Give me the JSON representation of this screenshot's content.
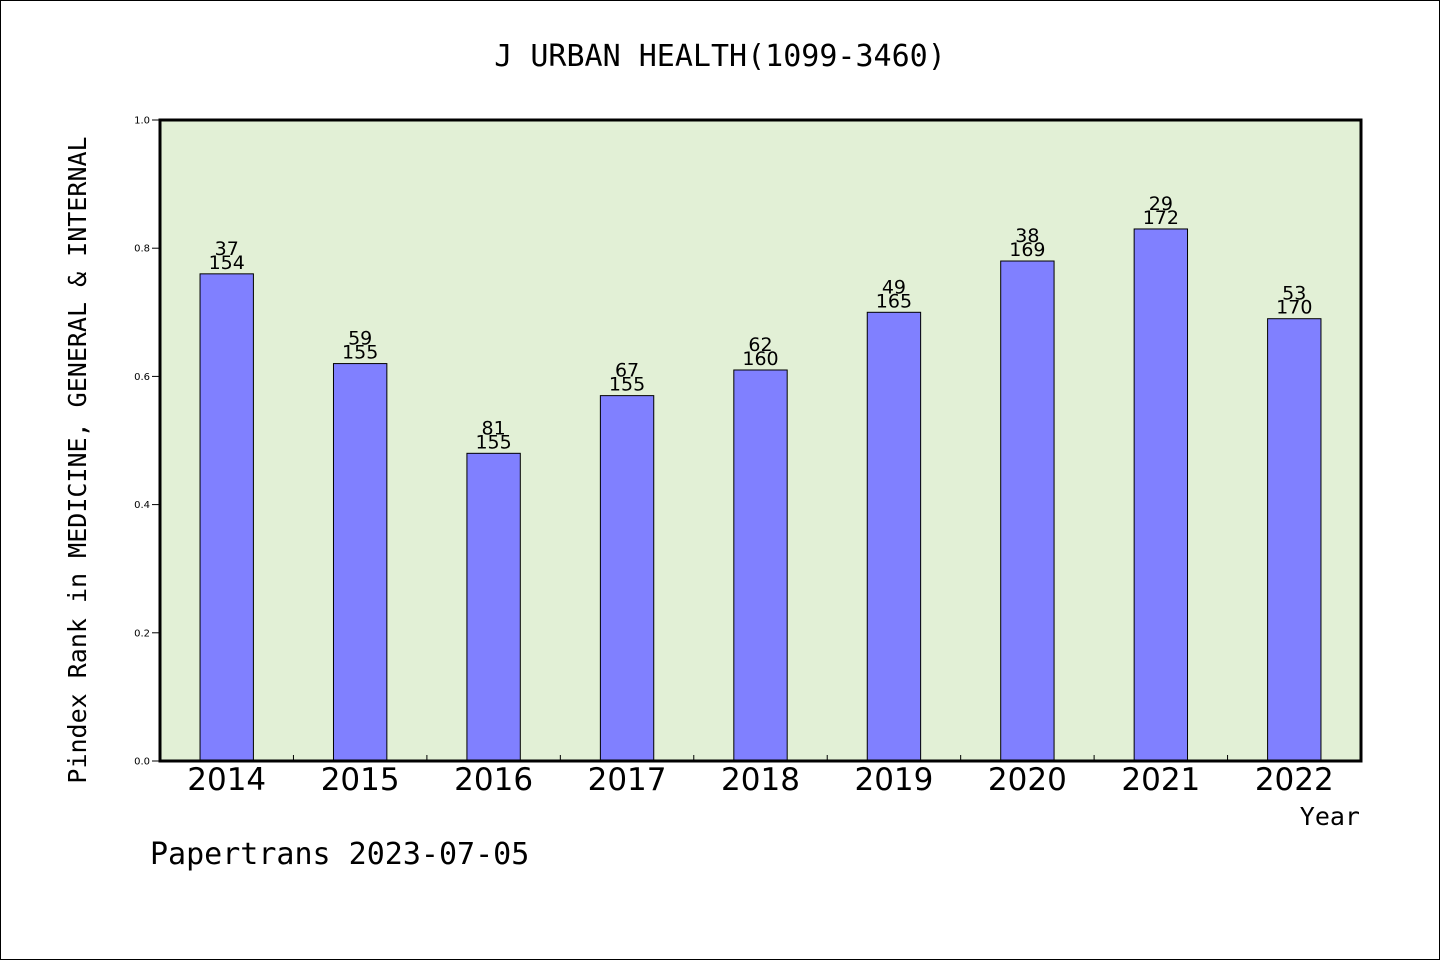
{
  "chart_data": {
    "type": "bar",
    "title": "J URBAN HEALTH(1099-3460)",
    "xlabel": "Year",
    "ylabel": "Pindex Rank in MEDICINE, GENERAL & INTERNAL",
    "categories": [
      "2014",
      "2015",
      "2016",
      "2017",
      "2018",
      "2019",
      "2020",
      "2021",
      "2022"
    ],
    "values": [
      0.76,
      0.62,
      0.48,
      0.57,
      0.61,
      0.7,
      0.78,
      0.83,
      0.69
    ],
    "rank_labels": [
      "37",
      "59",
      "81",
      "67",
      "62",
      "49",
      "38",
      "29",
      "53"
    ],
    "total_labels": [
      "154",
      "155",
      "155",
      "155",
      "160",
      "165",
      "169",
      "172",
      "170"
    ],
    "ylim": [
      0.0,
      1.0
    ],
    "yticks": [
      "0.0",
      "0.2",
      "0.4",
      "0.6",
      "0.8",
      "1.0"
    ],
    "grid": false,
    "colors": {
      "bar": "#8080ff",
      "plot_background": "#e2f0d6",
      "axis": "#000000"
    }
  },
  "footer": {
    "credit": "Papertrans 2023-07-05"
  }
}
